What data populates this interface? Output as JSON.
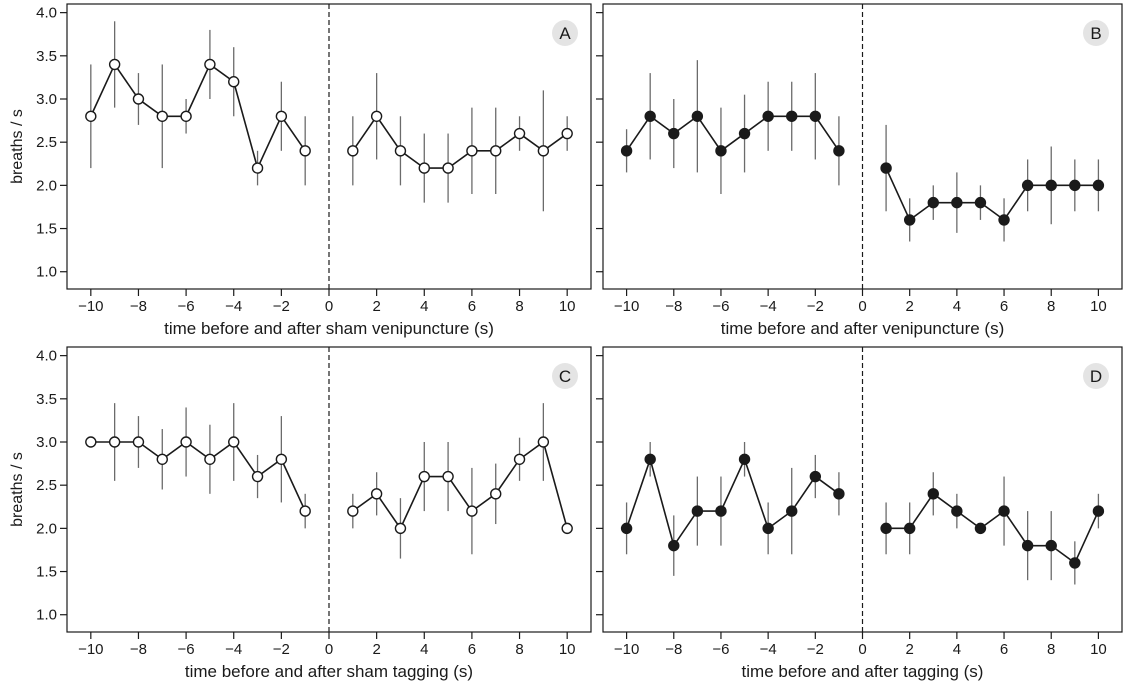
{
  "chart_data": [
    {
      "type": "line",
      "label": "A",
      "xlabel": "time before and after sham venipuncture (s)",
      "ylabel": "breaths / s",
      "xlim": [
        -11,
        11
      ],
      "ylim": [
        0.8,
        4.1
      ],
      "xticks": [
        -10,
        -8,
        -6,
        -4,
        -2,
        0,
        2,
        4,
        6,
        8,
        10
      ],
      "yticks": [
        1.0,
        1.5,
        2.0,
        2.5,
        3.0,
        3.5,
        4.0
      ],
      "marker": "open",
      "event_line_x": 0,
      "series": [
        {
          "x": [
            -10,
            -9,
            -8,
            -7,
            -6,
            -5,
            -4,
            -3,
            -2,
            -1
          ],
          "y": [
            2.8,
            3.4,
            3.0,
            2.8,
            2.8,
            3.4,
            3.2,
            2.2,
            2.8,
            2.4
          ],
          "err_low": [
            2.2,
            2.9,
            2.7,
            2.2,
            2.6,
            3.0,
            2.8,
            2.0,
            2.4,
            2.0
          ],
          "err_high": [
            3.4,
            3.9,
            3.3,
            3.4,
            3.0,
            3.8,
            3.6,
            2.4,
            3.2,
            2.8
          ]
        },
        {
          "x": [
            1,
            2,
            3,
            4,
            5,
            6,
            7,
            8,
            9,
            10
          ],
          "y": [
            2.4,
            2.8,
            2.4,
            2.2,
            2.2,
            2.4,
            2.4,
            2.6,
            2.4,
            2.6
          ],
          "err_low": [
            2.0,
            2.3,
            2.0,
            1.8,
            1.8,
            1.9,
            1.9,
            2.4,
            1.7,
            2.4
          ],
          "err_high": [
            2.8,
            3.3,
            2.8,
            2.6,
            2.6,
            2.9,
            2.9,
            2.8,
            3.1,
            2.8
          ]
        }
      ]
    },
    {
      "type": "line",
      "label": "B",
      "xlabel": "time before and after venipuncture (s)",
      "ylabel": "",
      "xlim": [
        -11,
        11
      ],
      "ylim": [
        0.8,
        4.1
      ],
      "xticks": [
        -10,
        -8,
        -6,
        -4,
        -2,
        0,
        2,
        4,
        6,
        8,
        10
      ],
      "yticks": [
        1.0,
        1.5,
        2.0,
        2.5,
        3.0,
        3.5,
        4.0
      ],
      "marker": "filled",
      "event_line_x": 0,
      "series": [
        {
          "x": [
            -10,
            -9,
            -8,
            -7,
            -6,
            -5,
            -4,
            -3,
            -2,
            -1
          ],
          "y": [
            2.4,
            2.8,
            2.6,
            2.8,
            2.4,
            2.6,
            2.8,
            2.8,
            2.8,
            2.4
          ],
          "err_low": [
            2.15,
            2.3,
            2.2,
            2.15,
            1.9,
            2.15,
            2.4,
            2.4,
            2.3,
            2.0
          ],
          "err_high": [
            2.65,
            3.3,
            3.0,
            3.45,
            2.9,
            3.05,
            3.2,
            3.2,
            3.3,
            2.8
          ]
        },
        {
          "x": [
            1,
            2,
            3,
            4,
            5,
            6,
            7,
            8,
            9,
            10
          ],
          "y": [
            2.2,
            1.6,
            1.8,
            1.8,
            1.8,
            1.6,
            2.0,
            2.0,
            2.0,
            2.0
          ],
          "err_low": [
            1.7,
            1.35,
            1.6,
            1.45,
            1.6,
            1.35,
            1.7,
            1.55,
            1.7,
            1.7
          ],
          "err_high": [
            2.7,
            1.85,
            2.0,
            2.15,
            2.0,
            1.85,
            2.3,
            2.45,
            2.3,
            2.3
          ]
        }
      ]
    },
    {
      "type": "line",
      "label": "C",
      "xlabel": "time before and after sham tagging (s)",
      "ylabel": "breaths / s",
      "xlim": [
        -11,
        11
      ],
      "ylim": [
        0.8,
        4.1
      ],
      "xticks": [
        -10,
        -8,
        -6,
        -4,
        -2,
        0,
        2,
        4,
        6,
        8,
        10
      ],
      "yticks": [
        1.0,
        1.5,
        2.0,
        2.5,
        3.0,
        3.5,
        4.0
      ],
      "marker": "open",
      "event_line_x": 0,
      "series": [
        {
          "x": [
            -10,
            -9,
            -8,
            -7,
            -6,
            -5,
            -4,
            -3,
            -2,
            -1
          ],
          "y": [
            3.0,
            3.0,
            3.0,
            2.8,
            3.0,
            2.8,
            3.0,
            2.6,
            2.8,
            2.2
          ],
          "err_low": [
            3.0,
            2.55,
            2.7,
            2.45,
            2.6,
            2.4,
            2.55,
            2.35,
            2.3,
            2.0
          ],
          "err_high": [
            3.0,
            3.45,
            3.3,
            3.15,
            3.4,
            3.2,
            3.45,
            2.85,
            3.3,
            2.4
          ]
        },
        {
          "x": [
            1,
            2,
            3,
            4,
            5,
            6,
            7,
            8,
            9,
            10
          ],
          "y": [
            2.2,
            2.4,
            2.0,
            2.6,
            2.6,
            2.2,
            2.4,
            2.8,
            3.0,
            2.0
          ],
          "err_low": [
            2.0,
            2.15,
            1.65,
            2.2,
            2.2,
            1.7,
            2.05,
            2.55,
            2.55,
            2.0
          ],
          "err_high": [
            2.4,
            2.65,
            2.35,
            3.0,
            3.0,
            2.7,
            2.75,
            3.05,
            3.45,
            2.0
          ]
        }
      ]
    },
    {
      "type": "line",
      "label": "D",
      "xlabel": "time before and after tagging (s)",
      "ylabel": "",
      "xlim": [
        -11,
        11
      ],
      "ylim": [
        0.8,
        4.1
      ],
      "xticks": [
        -10,
        -8,
        -6,
        -4,
        -2,
        0,
        2,
        4,
        6,
        8,
        10
      ],
      "yticks": [
        1.0,
        1.5,
        2.0,
        2.5,
        3.0,
        3.5,
        4.0
      ],
      "marker": "filled",
      "event_line_x": 0,
      "series": [
        {
          "x": [
            -10,
            -9,
            -8,
            -7,
            -6,
            -5,
            -4,
            -3,
            -2,
            -1
          ],
          "y": [
            2.0,
            2.8,
            1.8,
            2.2,
            2.2,
            2.8,
            2.0,
            2.2,
            2.6,
            2.4
          ],
          "err_low": [
            1.7,
            2.6,
            1.45,
            1.8,
            1.8,
            2.6,
            1.7,
            1.7,
            2.35,
            2.15
          ],
          "err_high": [
            2.3,
            3.0,
            2.15,
            2.6,
            2.6,
            3.0,
            2.3,
            2.7,
            2.85,
            2.65
          ]
        },
        {
          "x": [
            1,
            2,
            3,
            4,
            5,
            6,
            7,
            8,
            9,
            10
          ],
          "y": [
            2.0,
            2.0,
            2.4,
            2.2,
            2.0,
            2.2,
            1.8,
            1.8,
            1.6,
            2.2
          ],
          "err_low": [
            1.7,
            1.7,
            2.15,
            2.0,
            2.0,
            1.8,
            1.4,
            1.4,
            1.35,
            2.0
          ],
          "err_high": [
            2.3,
            2.3,
            2.65,
            2.4,
            2.0,
            2.6,
            2.2,
            2.2,
            1.85,
            2.4
          ]
        }
      ]
    }
  ]
}
